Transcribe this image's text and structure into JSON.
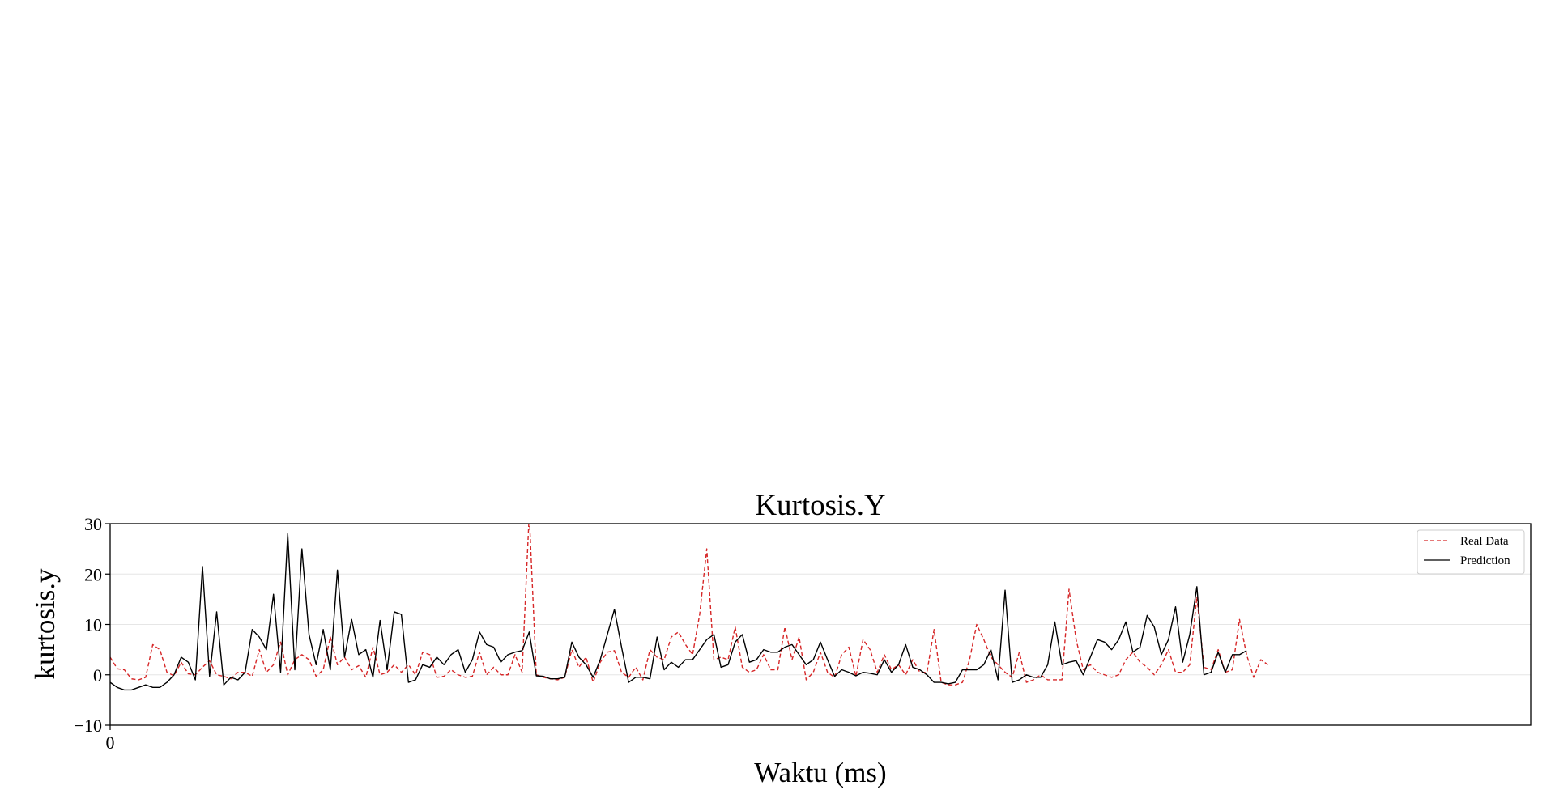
{
  "chart_data": {
    "type": "line",
    "title": "Kurtosis.Y",
    "xlabel": "Waktu (ms)",
    "ylabel": "kurtosis.y",
    "ylim": [
      -10,
      30
    ],
    "yticks": [
      -10,
      0,
      10,
      20,
      30
    ],
    "ytick_labels": [
      "−10",
      "0",
      "10",
      "20",
      "30"
    ],
    "xticks": [
      0
    ],
    "xtick_labels": [
      "0"
    ],
    "xlim": [
      0,
      200
    ],
    "grid": "horizontal",
    "legend_position": "top-right",
    "colors": {
      "real": "#d62728",
      "prediction": "#000000",
      "grid": "#e6e6e6"
    },
    "series": [
      {
        "name": "Real Data",
        "style": "dashed",
        "x_start": 0,
        "values": [
          3.5,
          1.2,
          1.0,
          -0.8,
          -1.0,
          -0.5,
          6.0,
          5.0,
          0.5,
          -0.2,
          2.5,
          0.2,
          0.0,
          1.5,
          2.8,
          0.0,
          -0.3,
          -0.8,
          0.5,
          0.5,
          -0.3,
          5.0,
          0.5,
          2.0,
          6.5,
          0.0,
          3.0,
          4.0,
          3.0,
          -0.3,
          1.0,
          7.5,
          2.0,
          3.5,
          1.0,
          1.8,
          -0.5,
          5.5,
          0.0,
          0.5,
          2.0,
          0.5,
          2.0,
          0.0,
          4.5,
          4.0,
          -0.5,
          -0.3,
          1.0,
          0.0,
          -0.5,
          -0.3,
          4.5,
          0.0,
          1.5,
          0.0,
          0.0,
          4.0,
          0.5,
          32.0,
          0.0,
          -0.5,
          -0.8,
          -1.0,
          -0.5,
          5.0,
          1.5,
          3.5,
          -1.5,
          2.5,
          4.5,
          4.8,
          0.5,
          -0.5,
          1.5,
          -1.0,
          5.0,
          3.5,
          3.0,
          7.5,
          8.5,
          6.0,
          4.0,
          12.0,
          25.0,
          3.0,
          3.5,
          3.0,
          9.5,
          1.5,
          0.5,
          1.0,
          4.0,
          1.0,
          1.0,
          9.5,
          3.0,
          7.5,
          -1.0,
          0.5,
          4.5,
          0.5,
          -0.5,
          4.0,
          5.5,
          -0.3,
          7.0,
          5.0,
          0.5,
          4.0,
          1.0,
          2.0,
          0.0,
          3.0,
          0.5,
          0.5,
          9.0,
          -1.5,
          -2.0,
          -2.0,
          -1.5,
          3.0,
          10.0,
          7.0,
          3.5,
          2.0,
          0.5,
          -0.5,
          4.5,
          -1.5,
          -1.0,
          0.0,
          -1.0,
          -1.0,
          -1.0,
          17.0,
          7.0,
          1.0,
          2.0,
          0.5,
          0.0,
          -0.5,
          0.0,
          3.0,
          4.5,
          2.5,
          1.5,
          0.0,
          2.0,
          5.0,
          0.5,
          0.5,
          2.0,
          15.5,
          1.5,
          1.0,
          5.0,
          0.5,
          1.0,
          11.0,
          4.0,
          -0.5,
          3.0,
          2.0
        ]
      },
      {
        "name": "Prediction",
        "style": "solid",
        "x_start": 0,
        "values": [
          -1.5,
          -2.5,
          -3.0,
          -3.0,
          -2.5,
          -2.0,
          -2.5,
          -2.5,
          -1.5,
          0.0,
          3.5,
          2.5,
          -1.0,
          21.5,
          -0.3,
          12.5,
          -2.0,
          -0.5,
          -1.0,
          0.5,
          9.0,
          7.5,
          5.0,
          16.0,
          0.5,
          28.0,
          1.0,
          25.0,
          8.0,
          2.0,
          9.0,
          1.0,
          20.8,
          3.5,
          11.0,
          4.0,
          5.0,
          -0.5,
          10.8,
          1.0,
          12.5,
          12.0,
          -1.5,
          -1.0,
          2.0,
          1.5,
          3.5,
          2.0,
          4.0,
          5.0,
          0.5,
          3.0,
          8.5,
          6.0,
          5.5,
          2.5,
          4.0,
          4.5,
          4.8,
          8.5,
          -0.2,
          -0.3,
          -0.8,
          -0.8,
          -0.5,
          6.5,
          3.5,
          2.0,
          -0.5,
          3.0,
          8.0,
          13.0,
          5.5,
          -1.5,
          -0.5,
          -0.5,
          -0.8,
          7.5,
          1.0,
          2.5,
          1.5,
          3.0,
          3.0,
          5.0,
          7.0,
          8.0,
          1.5,
          2.0,
          6.5,
          8.0,
          2.5,
          3.0,
          5.0,
          4.5,
          4.5,
          5.5,
          6.0,
          4.0,
          2.0,
          3.0,
          6.5,
          3.0,
          -0.3,
          1.0,
          0.5,
          -0.2,
          0.5,
          0.3,
          0.0,
          3.0,
          0.5,
          2.0,
          6.0,
          1.5,
          1.0,
          0.0,
          -1.5,
          -1.5,
          -1.8,
          -1.5,
          1.0,
          1.0,
          1.0,
          2.0,
          5.0,
          -1.0,
          16.8,
          -1.5,
          -1.0,
          0.0,
          -0.5,
          -0.5,
          2.0,
          10.5,
          2.0,
          2.5,
          2.8,
          0.0,
          3.5,
          7.0,
          6.5,
          5.0,
          7.0,
          10.5,
          4.5,
          5.5,
          11.8,
          9.5,
          4.0,
          7.0,
          13.5,
          2.5,
          8.0,
          17.5,
          0.0,
          0.5,
          4.5,
          0.5,
          4.0,
          4.0,
          4.8
        ]
      }
    ]
  }
}
